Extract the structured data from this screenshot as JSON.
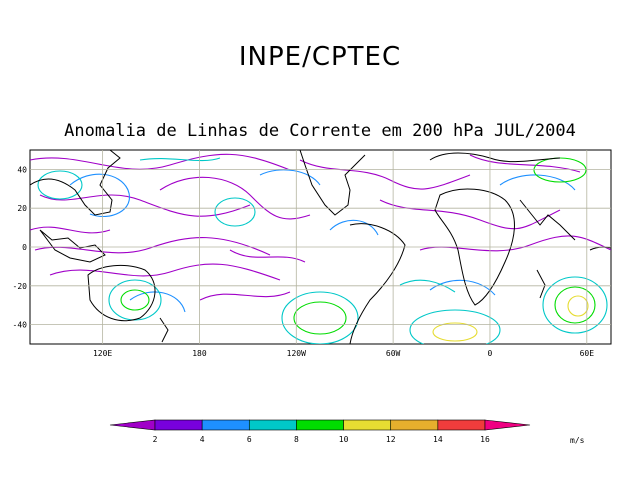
{
  "header": {
    "title": "INPE/CPTEC",
    "subtitle": "Anomalia de Linhas de Corrente em 200 hPa JUL/2004"
  },
  "map": {
    "lat_ticks": [
      {
        "value": 40,
        "label": "40"
      },
      {
        "value": 20,
        "label": "20"
      },
      {
        "value": 0,
        "label": "0"
      },
      {
        "value": -20,
        "label": "-20"
      },
      {
        "value": -40,
        "label": "-40"
      }
    ],
    "lon_ticks": [
      {
        "value": 120,
        "label": "120E"
      },
      {
        "value": 180,
        "label": "180"
      },
      {
        "value": 240,
        "label": "120W"
      },
      {
        "value": 300,
        "label": "60W"
      },
      {
        "value": 360,
        "label": "0"
      },
      {
        "value": 420,
        "label": "60E"
      }
    ],
    "lon_range_deg": [
      75,
      435
    ],
    "lat_range_deg": [
      -50,
      50
    ],
    "gridlines": true
  },
  "colorbar": {
    "unit": "m/s",
    "colors": [
      "#a000c8",
      "#7800dc",
      "#1e90ff",
      "#00c8c8",
      "#00dc00",
      "#e6dc32",
      "#e6af2d",
      "#f03c3c",
      "#f00082"
    ],
    "labels": [
      "2",
      "4",
      "6",
      "8",
      "10",
      "12",
      "14",
      "16"
    ]
  }
}
